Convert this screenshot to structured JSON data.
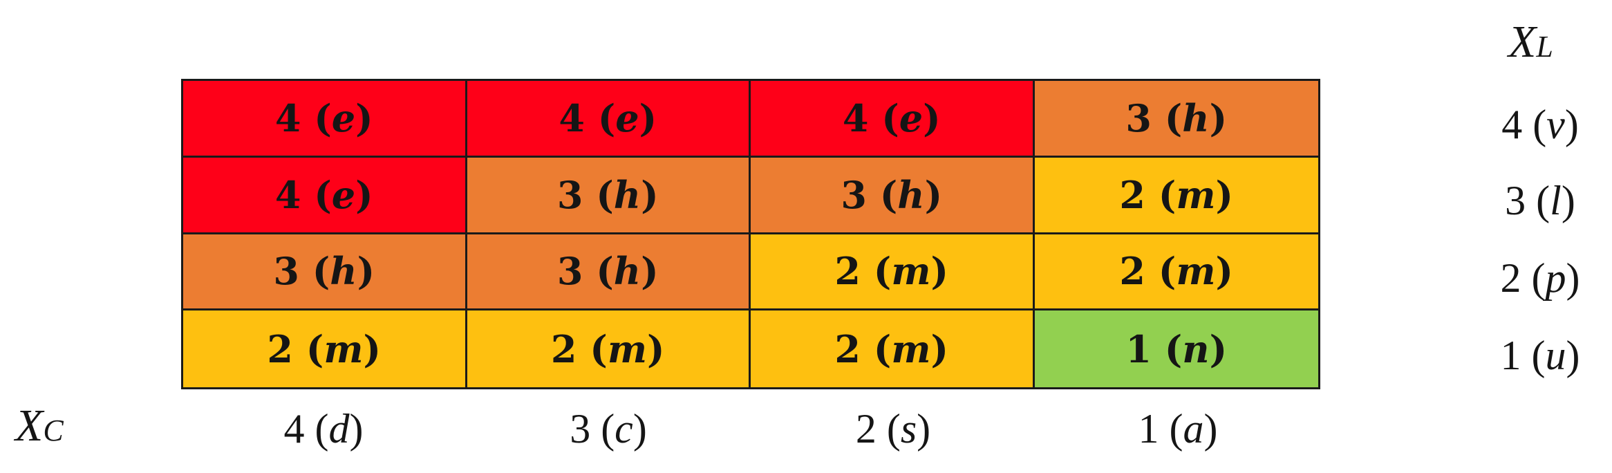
{
  "axes": {
    "xl": {
      "main": "X",
      "sub": "L"
    },
    "xc": {
      "main": "X",
      "sub": "C"
    }
  },
  "row_labels": [
    {
      "num": "4",
      "letter": "v"
    },
    {
      "num": "3",
      "letter": "l"
    },
    {
      "num": "2",
      "letter": "p"
    },
    {
      "num": "1",
      "letter": "u"
    }
  ],
  "col_labels": [
    {
      "num": "4",
      "letter": "d"
    },
    {
      "num": "3",
      "letter": "c"
    },
    {
      "num": "2",
      "letter": "s"
    },
    {
      "num": "1",
      "letter": "a"
    }
  ],
  "colors": {
    "e": "#fe0018",
    "h": "#ec7d32",
    "m": "#fec010",
    "n": "#92d050"
  },
  "matrix": [
    [
      {
        "num": "4",
        "letter": "e"
      },
      {
        "num": "4",
        "letter": "e"
      },
      {
        "num": "4",
        "letter": "e"
      },
      {
        "num": "3",
        "letter": "h"
      }
    ],
    [
      {
        "num": "4",
        "letter": "e"
      },
      {
        "num": "3",
        "letter": "h"
      },
      {
        "num": "3",
        "letter": "h"
      },
      {
        "num": "2",
        "letter": "m"
      }
    ],
    [
      {
        "num": "3",
        "letter": "h"
      },
      {
        "num": "3",
        "letter": "h"
      },
      {
        "num": "2",
        "letter": "m"
      },
      {
        "num": "2",
        "letter": "m"
      }
    ],
    [
      {
        "num": "2",
        "letter": "m"
      },
      {
        "num": "2",
        "letter": "m"
      },
      {
        "num": "2",
        "letter": "m"
      },
      {
        "num": "1",
        "letter": "n"
      }
    ]
  ]
}
